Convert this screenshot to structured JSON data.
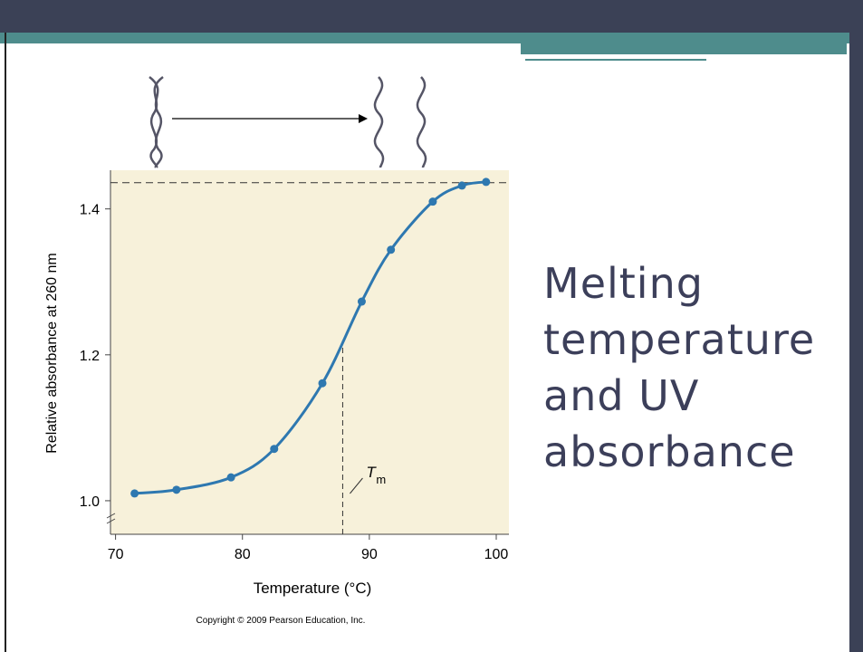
{
  "chart_data": {
    "type": "line",
    "title": "Melting temperature and UV absorbance",
    "x_label": "Temperature (°C)",
    "y_label": "Relative absorbance at 260 nm",
    "x": [
      71.5,
      74.8,
      79.1,
      82.5,
      86.3,
      89.4,
      91.7,
      95.0,
      97.3,
      99.2
    ],
    "series": [
      {
        "color": "#2e78b0",
        "values": [
          1.01,
          1.015,
          1.032,
          1.071,
          1.161,
          1.273,
          1.344,
          1.41,
          1.432,
          1.437
        ]
      }
    ],
    "xlim": [
      69.6,
      101
    ],
    "ylim": [
      0.954,
      1.453
    ],
    "xticks": [
      70,
      80,
      90,
      100
    ],
    "yticks": [
      {
        "value": 1.0,
        "label": "1.0"
      },
      {
        "value": 1.2,
        "label": "1.2"
      },
      {
        "value": 1.4,
        "label": "1.4"
      }
    ],
    "hline": 1.436,
    "annotation": {
      "text": "T",
      "subscript": "m",
      "x": 87.9,
      "y": 1.22
    },
    "source": "Copyright © 2009 Pearson Education, Inc."
  }
}
